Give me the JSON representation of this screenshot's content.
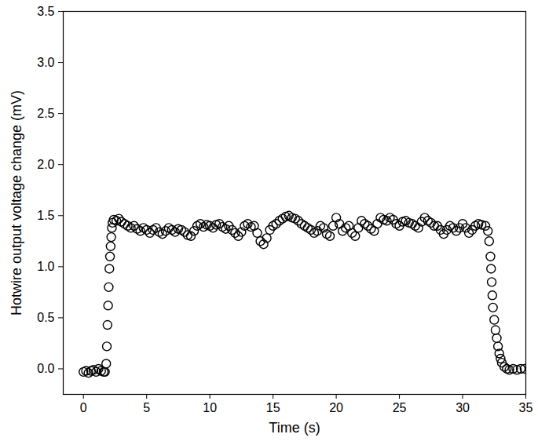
{
  "chart_data": {
    "type": "scatter",
    "x_label": "Time (s)",
    "y_label": "Hotwire output voltage change (mV)",
    "xlim": [
      -1.6,
      35
    ],
    "ylim": [
      -0.25,
      3.5
    ],
    "xticks": [
      0,
      5,
      10,
      15,
      20,
      25,
      30,
      35
    ],
    "yticks": [
      {
        "value": 0,
        "label": "0.0"
      },
      0.5,
      {
        "value": 1,
        "label": "1.0"
      },
      1.5,
      {
        "value": 2,
        "label": "2.0"
      },
      2.5,
      {
        "value": 3,
        "label": "3.0"
      },
      3.5
    ],
    "grid": false,
    "x": [
      0,
      0.2,
      0.4,
      0.6,
      0.8,
      1.0,
      1.2,
      1.4,
      1.6,
      1.7,
      1.8,
      1.85,
      1.9,
      1.95,
      2.0,
      2.05,
      2.1,
      2.15,
      2.2,
      2.25,
      2.3,
      2.4,
      2.6,
      2.8,
      3.0,
      3.25,
      3.5,
      3.75,
      4.0,
      4.25,
      4.5,
      4.75,
      5.0,
      5.25,
      5.5,
      5.75,
      6.0,
      6.25,
      6.5,
      6.75,
      7.0,
      7.25,
      7.5,
      7.75,
      8.0,
      8.25,
      8.5,
      8.75,
      9.0,
      9.25,
      9.5,
      9.75,
      10.0,
      10.25,
      10.5,
      10.75,
      11.0,
      11.25,
      11.5,
      11.75,
      12.0,
      12.25,
      12.5,
      12.75,
      13.0,
      13.25,
      13.5,
      13.75,
      14.0,
      14.25,
      14.5,
      14.75,
      15.0,
      15.25,
      15.5,
      15.75,
      16.0,
      16.25,
      16.5,
      16.75,
      17.0,
      17.25,
      17.5,
      17.75,
      18.0,
      18.25,
      18.5,
      18.75,
      19.0,
      19.25,
      19.5,
      19.75,
      20.0,
      20.25,
      20.5,
      20.75,
      21.0,
      21.25,
      21.5,
      21.75,
      22.0,
      22.25,
      22.5,
      22.75,
      23.0,
      23.25,
      23.5,
      23.75,
      24.0,
      24.25,
      24.5,
      24.75,
      25.0,
      25.25,
      25.5,
      25.75,
      26.0,
      26.25,
      26.5,
      26.75,
      27.0,
      27.25,
      27.5,
      27.75,
      28.0,
      28.25,
      28.5,
      28.75,
      29.0,
      29.25,
      29.5,
      29.75,
      30.0,
      30.25,
      30.5,
      30.75,
      31.0,
      31.25,
      31.5,
      31.8,
      32.0,
      32.1,
      32.2,
      32.25,
      32.3,
      32.35,
      32.4,
      32.5,
      32.6,
      32.7,
      32.8,
      32.9,
      33.0,
      33.1,
      33.3,
      33.5,
      33.7,
      34.0,
      34.3,
      34.6,
      34.9
    ],
    "series": [
      {
        "color": "#000000",
        "marker": "circle_open",
        "values": [
          -0.03,
          -0.02,
          -0.04,
          -0.02,
          -0.01,
          -0.03,
          0.0,
          -0.02,
          -0.03,
          -0.03,
          0.05,
          0.22,
          0.43,
          0.62,
          0.8,
          0.98,
          1.1,
          1.2,
          1.29,
          1.38,
          1.43,
          1.46,
          1.45,
          1.47,
          1.44,
          1.42,
          1.4,
          1.38,
          1.4,
          1.37,
          1.35,
          1.38,
          1.36,
          1.33,
          1.36,
          1.38,
          1.34,
          1.32,
          1.35,
          1.38,
          1.36,
          1.34,
          1.37,
          1.36,
          1.34,
          1.31,
          1.3,
          1.35,
          1.4,
          1.42,
          1.39,
          1.41,
          1.4,
          1.38,
          1.41,
          1.42,
          1.39,
          1.37,
          1.4,
          1.36,
          1.33,
          1.3,
          1.34,
          1.4,
          1.42,
          1.39,
          1.4,
          1.33,
          1.25,
          1.22,
          1.28,
          1.36,
          1.4,
          1.42,
          1.45,
          1.47,
          1.49,
          1.5,
          1.48,
          1.47,
          1.45,
          1.42,
          1.4,
          1.38,
          1.36,
          1.33,
          1.35,
          1.4,
          1.38,
          1.32,
          1.3,
          1.4,
          1.48,
          1.42,
          1.35,
          1.38,
          1.4,
          1.33,
          1.3,
          1.38,
          1.45,
          1.42,
          1.4,
          1.37,
          1.35,
          1.42,
          1.48,
          1.46,
          1.45,
          1.48,
          1.46,
          1.42,
          1.4,
          1.44,
          1.45,
          1.43,
          1.42,
          1.4,
          1.38,
          1.44,
          1.48,
          1.45,
          1.43,
          1.4,
          1.4,
          1.36,
          1.32,
          1.36,
          1.4,
          1.38,
          1.35,
          1.38,
          1.42,
          1.38,
          1.33,
          1.36,
          1.4,
          1.42,
          1.41,
          1.4,
          1.35,
          1.25,
          1.1,
          0.98,
          0.85,
          0.72,
          0.6,
          0.48,
          0.38,
          0.3,
          0.22,
          0.15,
          0.1,
          0.06,
          0.02,
          0.0,
          -0.01,
          0.0,
          -0.01,
          0.0,
          0.0
        ]
      }
    ]
  }
}
